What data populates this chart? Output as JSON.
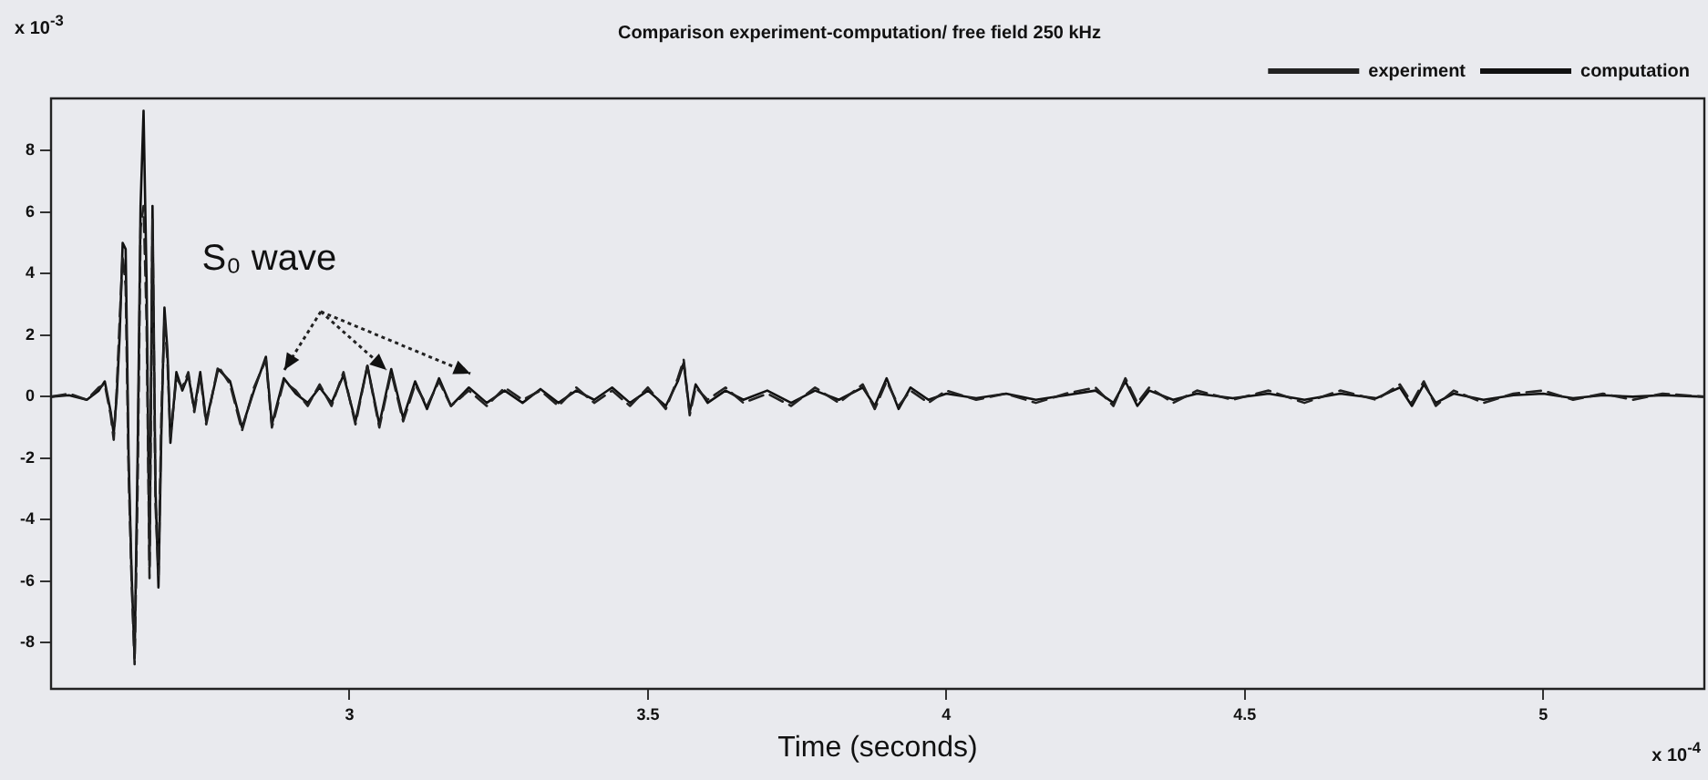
{
  "chart_data": {
    "type": "line",
    "title": "Comparison experiment-computation/ free field 250 kHz",
    "xlabel": "Time (seconds)",
    "annotations": [
      {
        "text": "S₀ wave",
        "x": 2.89,
        "y": 0.9
      },
      "x 10$^{-3}$",
      "x 10$^{-4}$"
    ],
    "xlim": [
      2.5,
      5.27
    ],
    "xticks": [
      3,
      3.5,
      4,
      4.5,
      5
    ],
    "ylim": [
      -9.5,
      9.7
    ],
    "yticks": [
      -8,
      -6,
      -4,
      -2,
      0,
      2,
      4,
      6,
      8
    ],
    "grid": false,
    "legend": "top right",
    "marker": "none",
    "series": [
      {
        "name": "experiment",
        "color": "#222222",
        "line_style": "dashed",
        "x": [
          2.5,
          2.53,
          2.56,
          2.58,
          2.59,
          2.6,
          2.605,
          2.61,
          2.615,
          2.62,
          2.625,
          2.63,
          2.635,
          2.64,
          2.645,
          2.65,
          2.655,
          2.66,
          2.665,
          2.67,
          2.675,
          2.68,
          2.685,
          2.69,
          2.695,
          2.7,
          2.71,
          2.72,
          2.73,
          2.74,
          2.75,
          2.76,
          2.78,
          2.8,
          2.82,
          2.84,
          2.86,
          2.87,
          2.89,
          2.91,
          2.93,
          2.95,
          2.97,
          2.99,
          3.01,
          3.03,
          3.05,
          3.07,
          3.09,
          3.11,
          3.13,
          3.15,
          3.17,
          3.2,
          3.23,
          3.26,
          3.29,
          3.32,
          3.35,
          3.38,
          3.41,
          3.44,
          3.47,
          3.5,
          3.53,
          3.55,
          3.56,
          3.57,
          3.58,
          3.6,
          3.63,
          3.66,
          3.7,
          3.74,
          3.78,
          3.82,
          3.86,
          3.88,
          3.9,
          3.92,
          3.94,
          3.97,
          4,
          4.05,
          4.1,
          4.15,
          4.2,
          4.25,
          4.28,
          4.3,
          4.32,
          4.34,
          4.38,
          4.42,
          4.48,
          4.54,
          4.6,
          4.66,
          4.72,
          4.76,
          4.78,
          4.8,
          4.82,
          4.85,
          4.9,
          4.95,
          5,
          5.05,
          5.1,
          5.15,
          5.2,
          5.27
        ],
        "values": [
          0,
          0.1,
          -0.1,
          0.3,
          0.4,
          -0.6,
          -1.4,
          0.2,
          2.5,
          4.6,
          3.6,
          -2.5,
          -6,
          -8.7,
          -3,
          5.5,
          6.2,
          2.5,
          -5.9,
          5.8,
          -3.5,
          -5.8,
          -0.5,
          2.5,
          1.2,
          -1.3,
          0.6,
          0.3,
          0.8,
          -0.5,
          0.7,
          -0.9,
          1,
          0.4,
          -1.1,
          0.3,
          1.2,
          -1,
          0.5,
          0.2,
          -0.3,
          0.4,
          -0.3,
          0.8,
          -0.9,
          1,
          -1,
          0.8,
          -0.8,
          0.4,
          -0.3,
          0.5,
          -0.3,
          0.2,
          -0.3,
          0.3,
          -0.1,
          0.2,
          -0.3,
          0.3,
          -0.2,
          0.2,
          -0.3,
          0.3,
          -0.4,
          0.6,
          1.2,
          -0.6,
          0.3,
          -0.1,
          0.3,
          -0.2,
          0.1,
          -0.3,
          0.3,
          -0.2,
          0.4,
          -0.4,
          0.5,
          -0.3,
          0.2,
          -0.2,
          0.2,
          -0.1,
          0.1,
          -0.2,
          0.1,
          0.3,
          -0.3,
          0.6,
          -0.2,
          0.3,
          -0.2,
          0.2,
          -0.1,
          0.2,
          -0.2,
          0.2,
          -0.1,
          0.4,
          -0.2,
          0.5,
          -0.3,
          0.2,
          -0.2,
          0.1,
          0.2,
          -0.1,
          0.1,
          -0.1,
          0.1,
          0
        ]
      },
      {
        "name": "computation",
        "color": "#111111",
        "line_style": "solid",
        "x": [
          2.5,
          2.53,
          2.56,
          2.58,
          2.59,
          2.6,
          2.605,
          2.61,
          2.615,
          2.62,
          2.625,
          2.63,
          2.635,
          2.64,
          2.645,
          2.65,
          2.655,
          2.66,
          2.665,
          2.67,
          2.675,
          2.68,
          2.685,
          2.69,
          2.695,
          2.7,
          2.71,
          2.72,
          2.73,
          2.74,
          2.75,
          2.76,
          2.78,
          2.8,
          2.82,
          2.84,
          2.86,
          2.87,
          2.89,
          2.91,
          2.93,
          2.95,
          2.97,
          2.99,
          3.01,
          3.03,
          3.05,
          3.07,
          3.09,
          3.11,
          3.13,
          3.15,
          3.17,
          3.2,
          3.23,
          3.26,
          3.29,
          3.32,
          3.35,
          3.38,
          3.41,
          3.44,
          3.47,
          3.5,
          3.53,
          3.55,
          3.56,
          3.57,
          3.58,
          3.6,
          3.63,
          3.66,
          3.7,
          3.74,
          3.78,
          3.82,
          3.86,
          3.88,
          3.9,
          3.92,
          3.94,
          3.97,
          4,
          4.05,
          4.1,
          4.15,
          4.2,
          4.25,
          4.28,
          4.3,
          4.32,
          4.34,
          4.38,
          4.42,
          4.48,
          4.54,
          4.6,
          4.66,
          4.72,
          4.76,
          4.78,
          4.8,
          4.82,
          4.85,
          4.9,
          4.95,
          5,
          5.05,
          5.1,
          5.15,
          5.2,
          5.27
        ],
        "values": [
          0,
          0.05,
          -0.1,
          0.2,
          0.5,
          -0.5,
          -1.2,
          0,
          2,
          5,
          4.8,
          -2,
          -5.8,
          -8.5,
          -2,
          6.2,
          9.3,
          3.8,
          -5.5,
          6.2,
          -3,
          -6.2,
          -1,
          2.9,
          1.5,
          -1.5,
          0.8,
          0.2,
          0.7,
          -0.4,
          0.8,
          -0.8,
          0.9,
          0.5,
          -1,
          0.2,
          1.3,
          -0.9,
          0.6,
          0.1,
          -0.2,
          0.3,
          -0.2,
          0.7,
          -0.8,
          1,
          -0.9,
          0.9,
          -0.7,
          0.5,
          -0.4,
          0.6,
          -0.3,
          0.3,
          -0.2,
          0.2,
          -0.2,
          0.25,
          -0.2,
          0.2,
          -0.1,
          0.3,
          -0.2,
          0.2,
          -0.3,
          0.5,
          1.1,
          -0.5,
          0.4,
          -0.2,
          0.2,
          -0.1,
          0.2,
          -0.2,
          0.2,
          -0.1,
          0.3,
          -0.3,
          0.6,
          -0.4,
          0.3,
          -0.1,
          0.1,
          -0.05,
          0.1,
          -0.1,
          0.05,
          0.2,
          -0.2,
          0.5,
          -0.3,
          0.2,
          -0.1,
          0.1,
          -0.05,
          0.1,
          -0.1,
          0.1,
          -0.05,
          0.3,
          -0.3,
          0.4,
          -0.2,
          0.1,
          -0.1,
          0.05,
          0.1,
          -0.05,
          0.05,
          0,
          0.05,
          0
        ]
      }
    ]
  }
}
